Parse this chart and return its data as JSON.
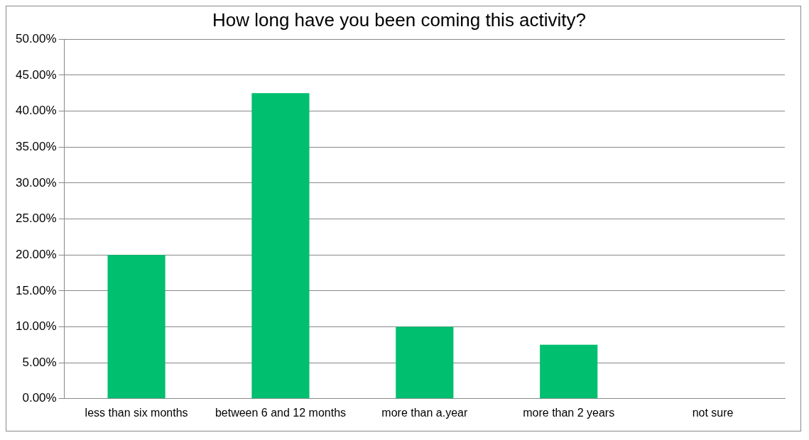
{
  "chart_data": {
    "type": "bar",
    "title": "How long have you been coming this activity?",
    "categories": [
      "less than six months",
      "between 6 and 12 months",
      "more than a.year",
      "more than 2 years",
      "not sure"
    ],
    "values": [
      20,
      42.5,
      10,
      7.5,
      0
    ],
    "color": "#00bf6f",
    "ylim": [
      0,
      50
    ],
    "yticks": [
      {
        "value": 0,
        "label": "0.00%"
      },
      {
        "value": 5,
        "label": "5.00%"
      },
      {
        "value": 10,
        "label": "10.00%"
      },
      {
        "value": 15,
        "label": "15.00%"
      },
      {
        "value": 20,
        "label": "20.00%"
      },
      {
        "value": 25,
        "label": "25.00%"
      },
      {
        "value": 30,
        "label": "30.00%"
      },
      {
        "value": 35,
        "label": "35.00%"
      },
      {
        "value": 40,
        "label": "40.00%"
      },
      {
        "value": 45,
        "label": "45.00%"
      },
      {
        "value": 50,
        "label": "50.00%"
      }
    ],
    "grid": "y",
    "legend": false
  }
}
